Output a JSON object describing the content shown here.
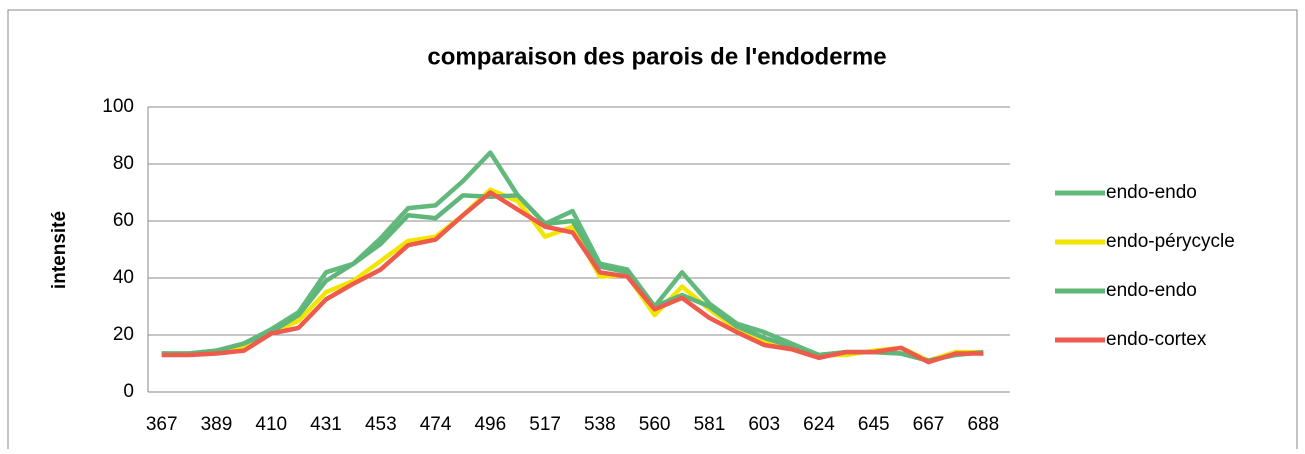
{
  "chart_data": {
    "type": "line",
    "title": "comparaison des parois de l'endoderme",
    "y_label": "intensité",
    "categories": [
      "367",
      null,
      "389",
      null,
      "410",
      null,
      "431",
      null,
      "453",
      null,
      "474",
      null,
      "496",
      null,
      "517",
      null,
      "538",
      null,
      "560",
      null,
      "581",
      null,
      "603",
      null,
      "624",
      null,
      "645",
      null,
      "667",
      null,
      "688"
    ],
    "series": [
      {
        "name": "endo-endo",
        "color": "#63b97c",
        "values": [
          13.5,
          13.5,
          14.5,
          17,
          22,
          28,
          42,
          45,
          54,
          64.5,
          65.5,
          74,
          84,
          69,
          59,
          63.5,
          45,
          43,
          30,
          42,
          31,
          24,
          21,
          17,
          13,
          14,
          14,
          13.5,
          11,
          14,
          13.5
        ]
      },
      {
        "name": "endo-pérycycle",
        "color": "#f2e600",
        "values": [
          13,
          13.5,
          14,
          16,
          21,
          25,
          35,
          39,
          46,
          53,
          54.5,
          62,
          71,
          67,
          54.5,
          58,
          40.5,
          41,
          27,
          37,
          29,
          22,
          18,
          16,
          13,
          13,
          14.5,
          15.5,
          11,
          14,
          14
        ]
      },
      {
        "name": "endo-endo",
        "color": "#5fb67a",
        "values": [
          13.5,
          13.5,
          14.5,
          17,
          21,
          27,
          39,
          45,
          52,
          62,
          61,
          69,
          68.5,
          69,
          59,
          60,
          44,
          42,
          30,
          34,
          30,
          23,
          19,
          16,
          13,
          14,
          14,
          13.5,
          11,
          13,
          14
        ]
      },
      {
        "name": "endo-cortex",
        "color": "#ee5a4b",
        "values": [
          13,
          13,
          13.5,
          14.5,
          20.5,
          22.5,
          32.5,
          38,
          43,
          51.5,
          53.5,
          62,
          70,
          64,
          58,
          56,
          42,
          40.5,
          29,
          33,
          26,
          21,
          16.5,
          15,
          12,
          14,
          14,
          15.5,
          10.5,
          13.5,
          13.5
        ]
      }
    ],
    "ylim": [
      0,
      100
    ],
    "yticks": [
      0,
      20,
      40,
      60,
      80,
      100
    ],
    "grid": true,
    "legend": "right"
  }
}
